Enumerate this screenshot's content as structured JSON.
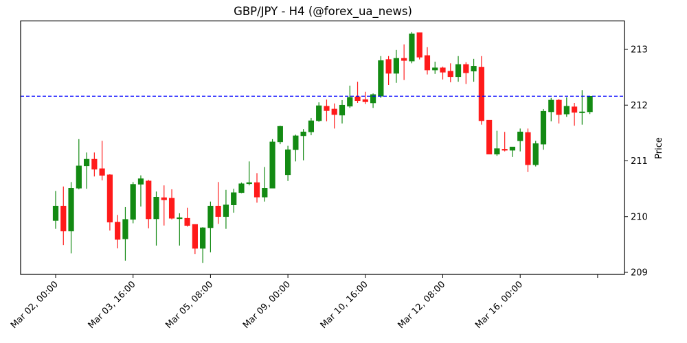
{
  "chart_data": {
    "type": "candlestick",
    "title": "GBP/JPY - H4 (@forex_ua_news)",
    "xlabel": "",
    "ylabel": "Price",
    "y_axis_position": "right",
    "ylim": [
      208.96,
      213.52
    ],
    "y_ticks": [
      209,
      210,
      211,
      212,
      213
    ],
    "x_tick_labels": [
      "Mar 02, 00:00",
      "Mar 03, 16:00",
      "Mar 05, 08:00",
      "Mar 09, 00:00",
      "Mar 10, 16:00",
      "Mar 12, 08:00",
      "Mar 16, 00:00",
      ""
    ],
    "x_tick_candle_index": [
      0,
      10,
      20,
      30,
      40,
      50,
      60,
      70
    ],
    "grid": false,
    "legend": null,
    "colors": {
      "up": "#138a13",
      "down": "#ff1a1a",
      "hline": "#0000ff"
    },
    "hline": {
      "value": 212.16,
      "style": "dashed",
      "color": "#0000ff"
    },
    "candles": [
      {
        "o": 209.93,
        "h": 210.46,
        "l": 209.78,
        "c": 210.19
      },
      {
        "o": 210.19,
        "h": 210.54,
        "l": 209.49,
        "c": 209.74
      },
      {
        "o": 209.74,
        "h": 210.62,
        "l": 209.34,
        "c": 210.51
      },
      {
        "o": 210.51,
        "h": 211.39,
        "l": 210.49,
        "c": 210.91
      },
      {
        "o": 210.91,
        "h": 211.15,
        "l": 210.5,
        "c": 211.03
      },
      {
        "o": 211.03,
        "h": 211.15,
        "l": 210.72,
        "c": 210.85
      },
      {
        "o": 210.86,
        "h": 211.36,
        "l": 210.65,
        "c": 210.74
      },
      {
        "o": 210.75,
        "h": 210.76,
        "l": 209.75,
        "c": 209.9
      },
      {
        "o": 209.9,
        "h": 210.03,
        "l": 209.43,
        "c": 209.59
      },
      {
        "o": 209.6,
        "h": 210.17,
        "l": 209.21,
        "c": 209.95
      },
      {
        "o": 209.95,
        "h": 210.62,
        "l": 209.88,
        "c": 210.58
      },
      {
        "o": 210.58,
        "h": 210.74,
        "l": 210.18,
        "c": 210.68
      },
      {
        "o": 210.64,
        "h": 210.66,
        "l": 209.79,
        "c": 209.96
      },
      {
        "o": 209.96,
        "h": 210.45,
        "l": 209.48,
        "c": 210.35
      },
      {
        "o": 210.34,
        "h": 210.56,
        "l": 209.84,
        "c": 210.3
      },
      {
        "o": 210.33,
        "h": 210.49,
        "l": 209.95,
        "c": 209.97
      },
      {
        "o": 209.97,
        "h": 210.06,
        "l": 209.48,
        "c": 209.98
      },
      {
        "o": 209.97,
        "h": 210.16,
        "l": 209.82,
        "c": 209.84
      },
      {
        "o": 209.86,
        "h": 209.86,
        "l": 209.33,
        "c": 209.43
      },
      {
        "o": 209.43,
        "h": 209.81,
        "l": 209.17,
        "c": 209.8
      },
      {
        "o": 209.8,
        "h": 210.27,
        "l": 209.36,
        "c": 210.19
      },
      {
        "o": 210.19,
        "h": 210.62,
        "l": 209.87,
        "c": 210.0
      },
      {
        "o": 210.0,
        "h": 210.48,
        "l": 209.78,
        "c": 210.21
      },
      {
        "o": 210.21,
        "h": 210.5,
        "l": 210.07,
        "c": 210.43
      },
      {
        "o": 210.43,
        "h": 210.61,
        "l": 210.42,
        "c": 210.59
      },
      {
        "o": 210.59,
        "h": 210.99,
        "l": 210.56,
        "c": 210.61
      },
      {
        "o": 210.61,
        "h": 210.78,
        "l": 210.25,
        "c": 210.35
      },
      {
        "o": 210.35,
        "h": 210.89,
        "l": 210.27,
        "c": 210.51
      },
      {
        "o": 210.51,
        "h": 211.39,
        "l": 210.51,
        "c": 211.34
      },
      {
        "o": 211.34,
        "h": 211.63,
        "l": 211.3,
        "c": 211.62
      },
      {
        "o": 210.75,
        "h": 211.27,
        "l": 210.64,
        "c": 211.2
      },
      {
        "o": 211.2,
        "h": 211.47,
        "l": 210.99,
        "c": 211.45
      },
      {
        "o": 211.45,
        "h": 211.57,
        "l": 211.01,
        "c": 211.52
      },
      {
        "o": 211.52,
        "h": 211.77,
        "l": 211.46,
        "c": 211.72
      },
      {
        "o": 211.72,
        "h": 212.05,
        "l": 211.7,
        "c": 211.99
      },
      {
        "o": 211.98,
        "h": 212.1,
        "l": 211.71,
        "c": 211.9
      },
      {
        "o": 211.93,
        "h": 212.03,
        "l": 211.58,
        "c": 211.83
      },
      {
        "o": 211.82,
        "h": 212.09,
        "l": 211.67,
        "c": 212.0
      },
      {
        "o": 211.98,
        "h": 212.35,
        "l": 211.95,
        "c": 212.14
      },
      {
        "o": 212.15,
        "h": 212.42,
        "l": 212.04,
        "c": 212.08
      },
      {
        "o": 212.1,
        "h": 212.24,
        "l": 212.02,
        "c": 212.06
      },
      {
        "o": 212.04,
        "h": 212.21,
        "l": 211.95,
        "c": 212.19
      },
      {
        "o": 212.16,
        "h": 212.88,
        "l": 212.13,
        "c": 212.8
      },
      {
        "o": 212.82,
        "h": 212.88,
        "l": 212.36,
        "c": 212.57
      },
      {
        "o": 212.57,
        "h": 212.99,
        "l": 212.4,
        "c": 212.84
      },
      {
        "o": 212.84,
        "h": 213.09,
        "l": 212.45,
        "c": 212.8
      },
      {
        "o": 212.79,
        "h": 213.31,
        "l": 212.75,
        "c": 213.28
      },
      {
        "o": 213.3,
        "h": 213.3,
        "l": 212.82,
        "c": 212.86
      },
      {
        "o": 212.89,
        "h": 213.04,
        "l": 212.55,
        "c": 212.63
      },
      {
        "o": 212.63,
        "h": 212.78,
        "l": 212.56,
        "c": 212.67
      },
      {
        "o": 212.67,
        "h": 212.69,
        "l": 212.46,
        "c": 212.59
      },
      {
        "o": 212.61,
        "h": 212.75,
        "l": 212.41,
        "c": 212.51
      },
      {
        "o": 212.51,
        "h": 212.88,
        "l": 212.42,
        "c": 212.73
      },
      {
        "o": 212.73,
        "h": 212.77,
        "l": 212.38,
        "c": 212.58
      },
      {
        "o": 212.61,
        "h": 212.83,
        "l": 212.42,
        "c": 212.7
      },
      {
        "o": 212.68,
        "h": 212.88,
        "l": 211.65,
        "c": 211.72
      },
      {
        "o": 211.73,
        "h": 211.73,
        "l": 211.12,
        "c": 211.12
      },
      {
        "o": 211.12,
        "h": 211.54,
        "l": 211.09,
        "c": 211.22
      },
      {
        "o": 211.21,
        "h": 211.52,
        "l": 211.17,
        "c": 211.19
      },
      {
        "o": 211.19,
        "h": 211.25,
        "l": 211.07,
        "c": 211.25
      },
      {
        "o": 211.36,
        "h": 211.58,
        "l": 211.17,
        "c": 211.52
      },
      {
        "o": 211.51,
        "h": 211.58,
        "l": 210.8,
        "c": 210.93
      },
      {
        "o": 210.93,
        "h": 211.36,
        "l": 210.9,
        "c": 211.31
      },
      {
        "o": 211.3,
        "h": 211.93,
        "l": 211.2,
        "c": 211.89
      },
      {
        "o": 211.88,
        "h": 212.13,
        "l": 211.71,
        "c": 212.09
      },
      {
        "o": 212.09,
        "h": 212.11,
        "l": 211.67,
        "c": 211.83
      },
      {
        "o": 211.84,
        "h": 212.14,
        "l": 211.79,
        "c": 211.98
      },
      {
        "o": 211.97,
        "h": 212.04,
        "l": 211.63,
        "c": 211.87
      },
      {
        "o": 211.87,
        "h": 212.27,
        "l": 211.65,
        "c": 211.88
      },
      {
        "o": 211.88,
        "h": 212.16,
        "l": 211.84,
        "c": 212.16
      }
    ]
  }
}
